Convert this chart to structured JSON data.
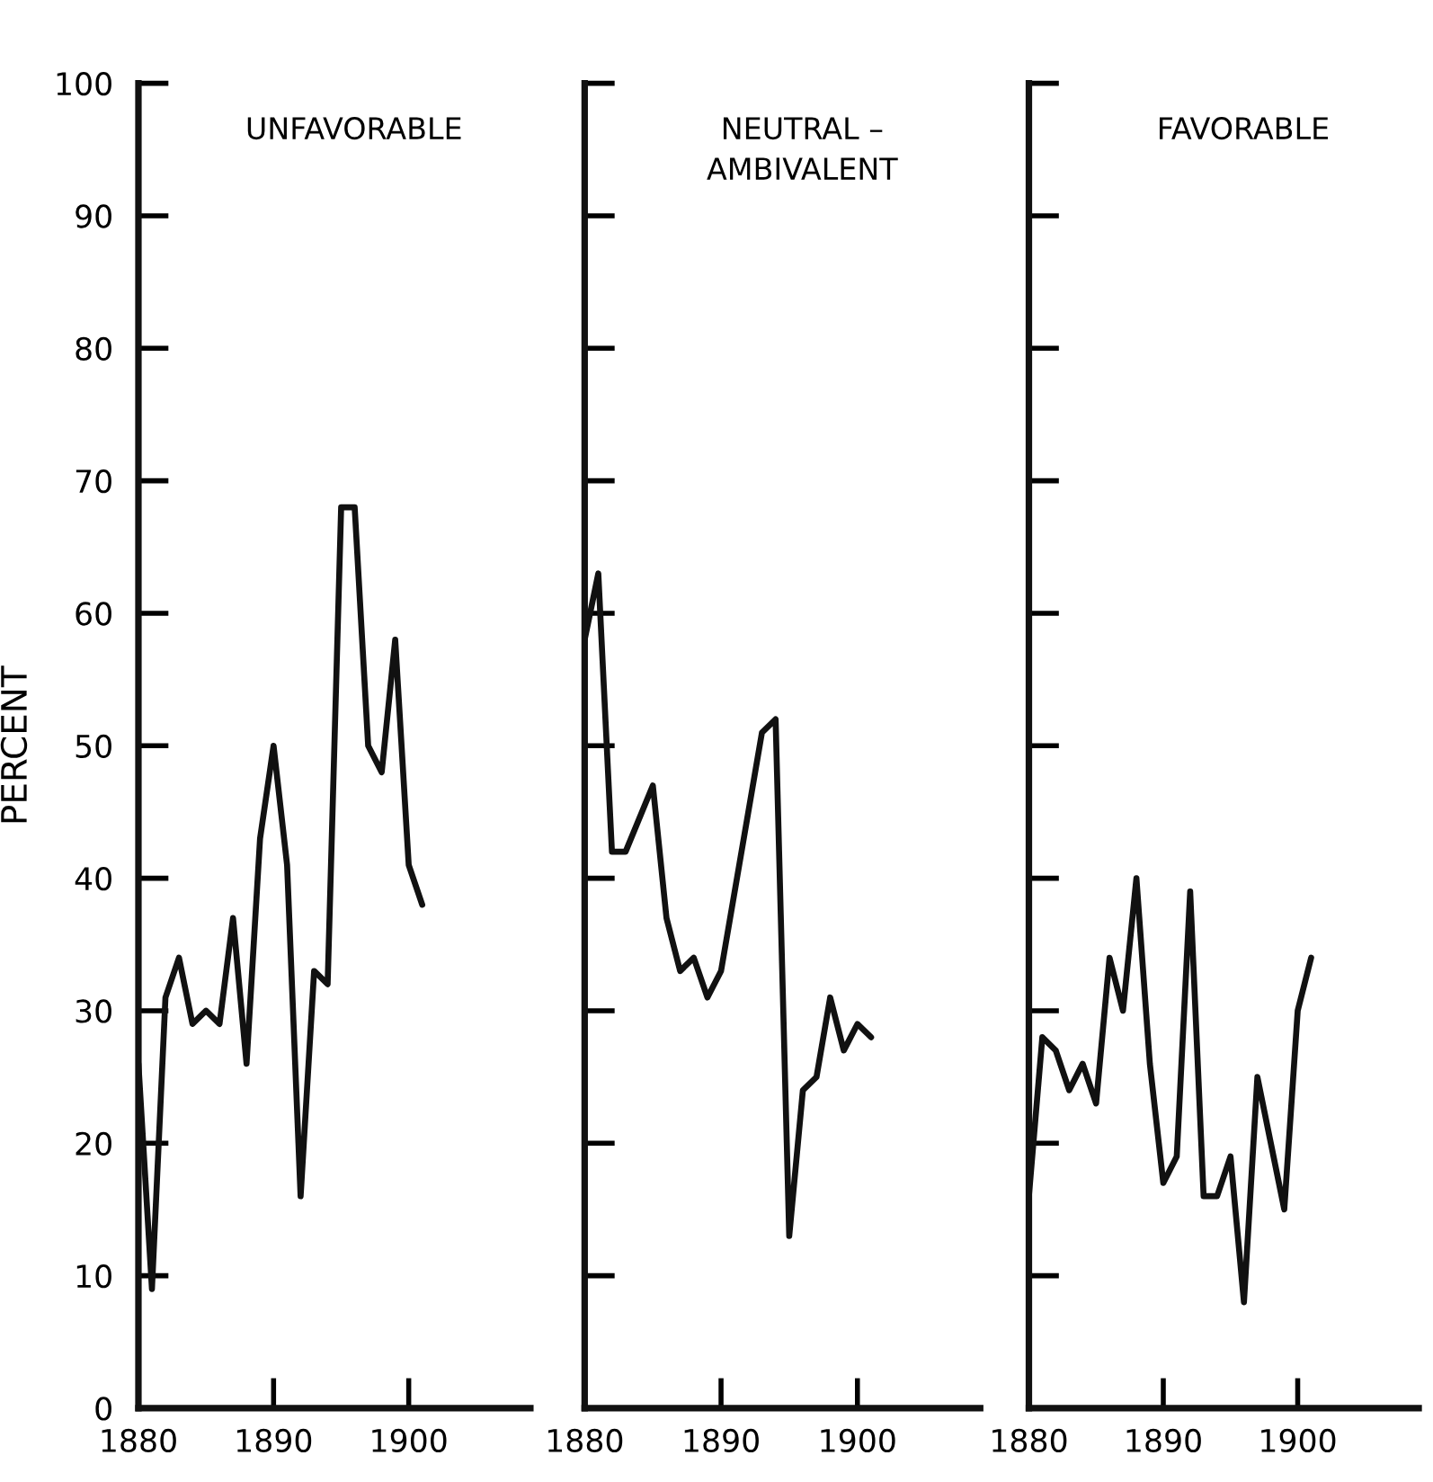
{
  "chart_data": [
    {
      "type": "line",
      "title": "UNFAVORABLE",
      "ylabel": "PERCENT",
      "xlim": [
        1880,
        1909
      ],
      "xticks": [
        1880,
        1890,
        1900
      ],
      "ylim": [
        0,
        100
      ],
      "yticks": [
        0,
        10,
        20,
        30,
        40,
        50,
        60,
        70,
        80,
        90,
        100
      ],
      "color": "#111111",
      "x": [
        1880,
        1881,
        1882,
        1883,
        1884,
        1885,
        1886,
        1887,
        1888,
        1889,
        1890,
        1891,
        1892,
        1893,
        1894,
        1895,
        1896,
        1897,
        1898,
        1899,
        1900,
        1901
      ],
      "values": [
        26,
        9,
        31,
        34,
        29,
        30,
        29,
        37,
        26,
        43,
        50,
        41,
        16,
        33,
        32,
        68,
        68,
        50,
        48,
        58,
        41,
        38
      ]
    },
    {
      "type": "line",
      "title": "NEUTRAL –\nAMBIVALENT",
      "tick_labels": "x",
      "xlim": [
        1880,
        1909
      ],
      "xticks": [
        1880,
        1890,
        1900
      ],
      "ylim": [
        0,
        100
      ],
      "yticks": [
        0,
        10,
        20,
        30,
        40,
        50,
        60,
        70,
        80,
        90,
        100
      ],
      "color": "#111111",
      "x": [
        1880,
        1881,
        1882,
        1883,
        1885,
        1886,
        1887,
        1888,
        1889,
        1890,
        1893,
        1894,
        1895,
        1896,
        1897,
        1898,
        1899,
        1900,
        1901
      ],
      "values": [
        58,
        63,
        42,
        42,
        47,
        37,
        33,
        34,
        31,
        33,
        51,
        52,
        13,
        24,
        25,
        31,
        27,
        29,
        28
      ]
    },
    {
      "type": "line",
      "title": "FAVORABLE",
      "tick_labels": "x",
      "xlim": [
        1880,
        1909
      ],
      "xticks": [
        1880,
        1890,
        1900
      ],
      "ylim": [
        0,
        100
      ],
      "yticks": [
        0,
        10,
        20,
        30,
        40,
        50,
        60,
        70,
        80,
        90,
        100
      ],
      "color": "#111111",
      "x": [
        1880,
        1881,
        1882,
        1883,
        1884,
        1885,
        1886,
        1887,
        1888,
        1889,
        1890,
        1891,
        1892,
        1893,
        1894,
        1895,
        1896,
        1897,
        1898,
        1899,
        1900,
        1901
      ],
      "values": [
        16,
        28,
        27,
        24,
        26,
        23,
        34,
        30,
        40,
        26,
        17,
        19,
        39,
        16,
        16,
        19,
        8,
        25,
        20,
        15,
        30,
        34
      ]
    }
  ]
}
